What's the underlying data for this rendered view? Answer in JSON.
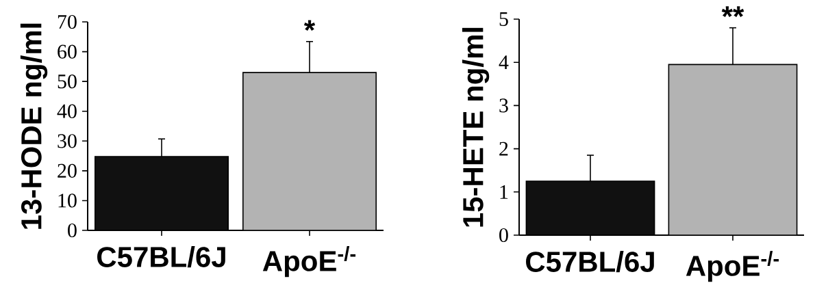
{
  "chart_data": [
    {
      "type": "bar",
      "categories": [
        "C57BL/6J",
        "ApoE$^{-/-}$"
      ],
      "values": [
        24.8,
        53
      ],
      "colors": [
        "#111111",
        "#b3b3b3"
      ],
      "errors": [
        [
          24.8,
          30.7
        ],
        [
          53,
          63.4
        ]
      ],
      "ylabel": "13-HODE ng/ml",
      "ylim": [
        0,
        70
      ],
      "yticks": [
        0,
        10,
        20,
        30,
        40,
        50,
        60,
        70
      ],
      "annotations": [
        {
          "text": "*",
          "x": "ApoE$^{-/-}$",
          "y": 63.4
        }
      ]
    },
    {
      "type": "bar",
      "categories": [
        "C57BL/6J",
        "ApoE$^{-/-}$"
      ],
      "values": [
        1.25,
        3.95
      ],
      "colors": [
        "#111111",
        "#b3b3b3"
      ],
      "errors": [
        [
          1.25,
          1.85
        ],
        [
          3.95,
          4.8
        ]
      ],
      "ylabel": "15-HETE ng/ml",
      "ylim": [
        0,
        5
      ],
      "yticks": [
        0,
        1,
        2,
        3,
        4,
        5
      ],
      "annotations": [
        {
          "text": "**",
          "x": "ApoE$^{-/-}$",
          "y": 4.8
        }
      ]
    }
  ]
}
